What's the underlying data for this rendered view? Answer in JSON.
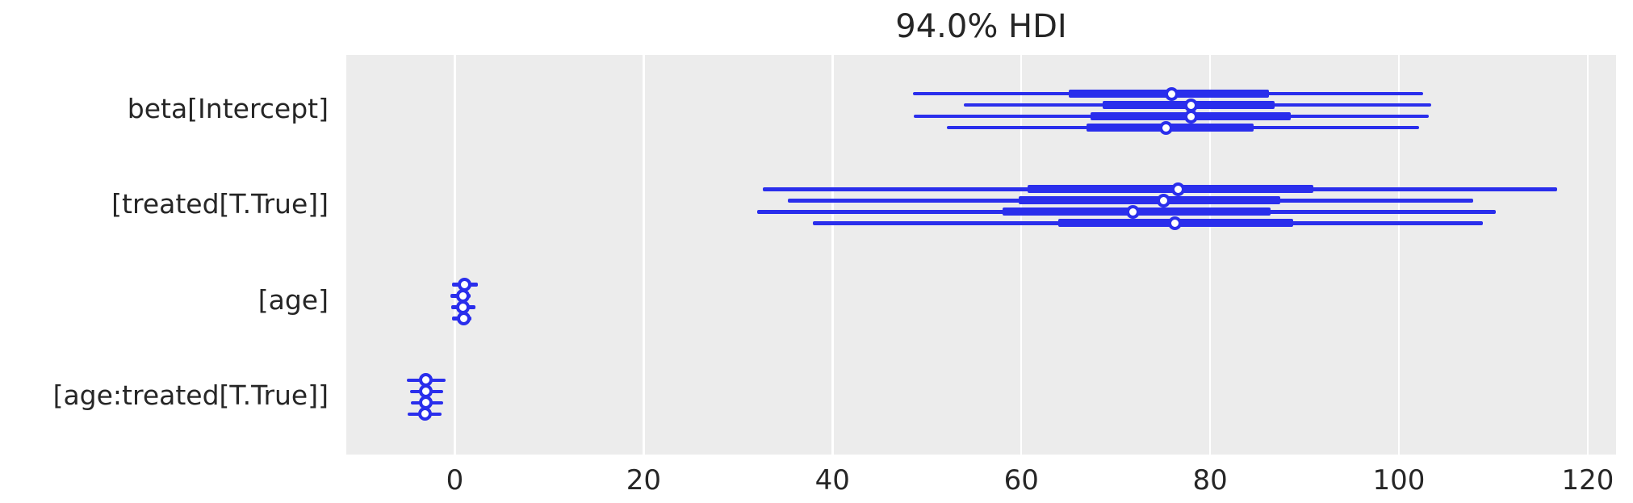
{
  "title": "94.0% HDI",
  "chart_data": {
    "type": "forest",
    "title": "94.0% HDI",
    "hdi_prob": 0.94,
    "line_color": "#2a2eec",
    "plot_bg_color": "#ececec",
    "grid_color": "#ffffff",
    "text_color": "#262626",
    "xlim": [
      -11.5,
      123
    ],
    "x_ticks": [
      0,
      20,
      40,
      60,
      80,
      100,
      120
    ],
    "legend_position": "none",
    "grid": "vertical-white",
    "parameters": [
      {
        "label": "beta[Intercept]",
        "chains": [
          {
            "hdi": [
              48.5,
              102.6
            ],
            "quartile": [
              65.0,
              86.2
            ],
            "point": 75.9
          },
          {
            "hdi": [
              53.9,
              103.4
            ],
            "quartile": [
              68.6,
              86.8
            ],
            "point": 78.0
          },
          {
            "hdi": [
              48.6,
              103.2
            ],
            "quartile": [
              67.3,
              88.5
            ],
            "point": 78.0
          },
          {
            "hdi": [
              52.1,
              102.1
            ],
            "quartile": [
              66.9,
              84.6
            ],
            "point": 75.3
          }
        ]
      },
      {
        "label": "[treated[T.True]]",
        "chains": [
          {
            "hdi": [
              32.6,
              116.8
            ],
            "quartile": [
              60.7,
              90.9
            ],
            "point": 76.6
          },
          {
            "hdi": [
              35.3,
              107.9
            ],
            "quartile": [
              59.7,
              87.4
            ],
            "point": 75.1
          },
          {
            "hdi": [
              32.0,
              110.3
            ],
            "quartile": [
              58.0,
              86.4
            ],
            "point": 71.8
          },
          {
            "hdi": [
              37.9,
              108.9
            ],
            "quartile": [
              63.9,
              88.8
            ],
            "point": 76.3
          }
        ]
      },
      {
        "label": "[age]",
        "chains": [
          {
            "hdi": [
              -0.3,
              2.45
            ],
            "quartile": [
              0.45,
              1.6
            ],
            "point": 1.0
          },
          {
            "hdi": [
              -0.5,
              1.68
            ],
            "quartile": [
              0.3,
              1.4
            ],
            "point": 0.88
          },
          {
            "hdi": [
              -0.4,
              2.16
            ],
            "quartile": [
              0.3,
              1.45
            ],
            "point": 0.85
          },
          {
            "hdi": [
              -0.3,
              1.73
            ],
            "quartile": [
              0.35,
              1.5
            ],
            "point": 0.94
          }
        ]
      },
      {
        "label": "[age:treated[T.True]]",
        "chains": [
          {
            "hdi": [
              -5.1,
              -0.97
            ],
            "quartile": [
              -3.65,
              -2.5
            ],
            "point": -3.1
          },
          {
            "hdi": [
              -4.76,
              -1.26
            ],
            "quartile": [
              -3.6,
              -2.45
            ],
            "point": -3.05
          },
          {
            "hdi": [
              -4.7,
              -1.2
            ],
            "quartile": [
              -3.65,
              -2.5
            ],
            "point": -3.1
          },
          {
            "hdi": [
              -4.96,
              -1.45
            ],
            "quartile": [
              -3.7,
              -2.55
            ],
            "point": -3.16
          }
        ]
      }
    ]
  }
}
